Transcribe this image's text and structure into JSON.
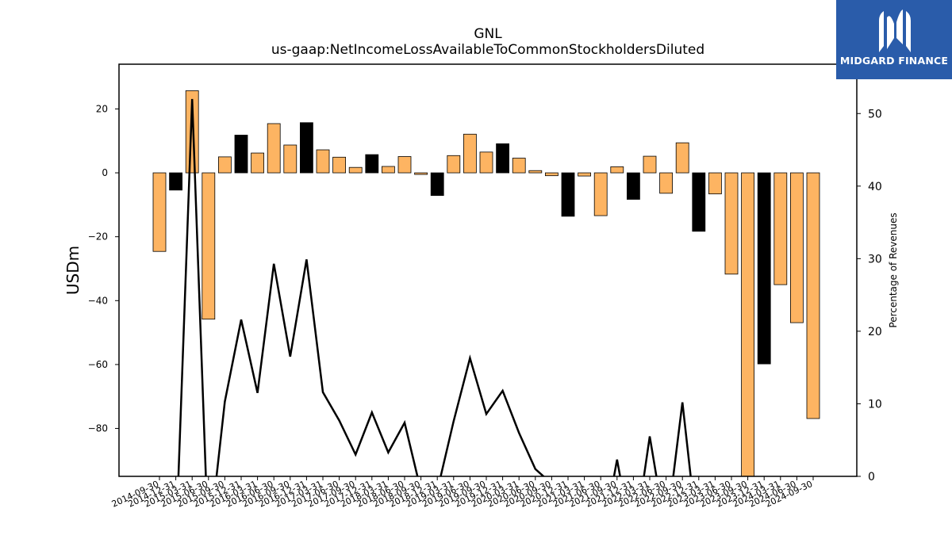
{
  "brand": {
    "name": "MIDGARD FINANCE",
    "logo_icon": "midgard-m-logo-icon",
    "background": "#2a5caa"
  },
  "chart_data": {
    "type": "bar",
    "title": "GNL",
    "subtitle": "us-gaap:NetIncomeLossAvailableToCommonStockholdersDiluted",
    "ylabel": "USDm",
    "y2label": "Percentage of Revenues",
    "ylim": [
      -95,
      34
    ],
    "y2lim": [
      0,
      56.8
    ],
    "yticks": [
      -80,
      -60,
      -40,
      -20,
      0,
      20
    ],
    "y2ticks": [
      0,
      10,
      20,
      30,
      40,
      50
    ],
    "colors": {
      "q4_bar": "#000000",
      "other_bar": "#fdb462",
      "line": "#000000"
    },
    "categories": [
      "2014-09-30",
      "2014-12-31",
      "2015-03-31",
      "2015-06-30",
      "2015-09-30",
      "2015-12-31",
      "2016-03-31",
      "2016-06-30",
      "2016-09-30",
      "2016-12-31",
      "2017-03-31",
      "2017-06-30",
      "2017-09-30",
      "2017-12-31",
      "2018-03-31",
      "2018-06-30",
      "2018-09-30",
      "2018-12-31",
      "2019-03-31",
      "2019-06-30",
      "2019-09-30",
      "2019-12-31",
      "2020-03-31",
      "2020-06-30",
      "2020-09-30",
      "2020-12-31",
      "2021-03-31",
      "2021-06-30",
      "2021-09-30",
      "2021-12-31",
      "2022-03-31",
      "2022-06-30",
      "2022-09-30",
      "2022-12-31",
      "2023-03-31",
      "2023-06-30",
      "2023-09-30",
      "2023-12-31",
      "2024-03-31",
      "2024-06-30",
      "2024-09-30"
    ],
    "series": [
      {
        "values": [
          -24.6,
          -5.4,
          25.7,
          -45.8,
          5.0,
          11.8,
          6.2,
          15.4,
          8.7,
          15.7,
          7.2,
          4.9,
          1.7,
          5.7,
          2.0,
          5.1,
          -0.5,
          -7.1,
          5.4,
          12.1,
          6.5,
          9.1,
          4.6,
          0.7,
          -0.9,
          -13.6,
          -1.0,
          -13.4,
          1.9,
          -8.3,
          5.2,
          -6.4,
          9.4,
          -18.3,
          -6.6,
          -31.7,
          -95.0,
          -59.8,
          -35.0,
          -46.9,
          -76.9
        ]
      },
      {
        "values": [
          -10,
          -10,
          52,
          -10,
          10.3,
          21.6,
          11.5,
          29.3,
          16.5,
          29.9,
          11.6,
          7.7,
          3.0,
          8.8,
          3.3,
          7.4,
          -2,
          -2,
          7.6,
          16.3,
          8.6,
          11.8,
          6.0,
          1.0,
          -1,
          -10,
          -1.5,
          -10,
          2.3,
          -10,
          5.5,
          -8,
          10.2,
          -10,
          -10,
          -10,
          -10,
          -10,
          -10,
          -10,
          -10
        ]
      }
    ]
  }
}
